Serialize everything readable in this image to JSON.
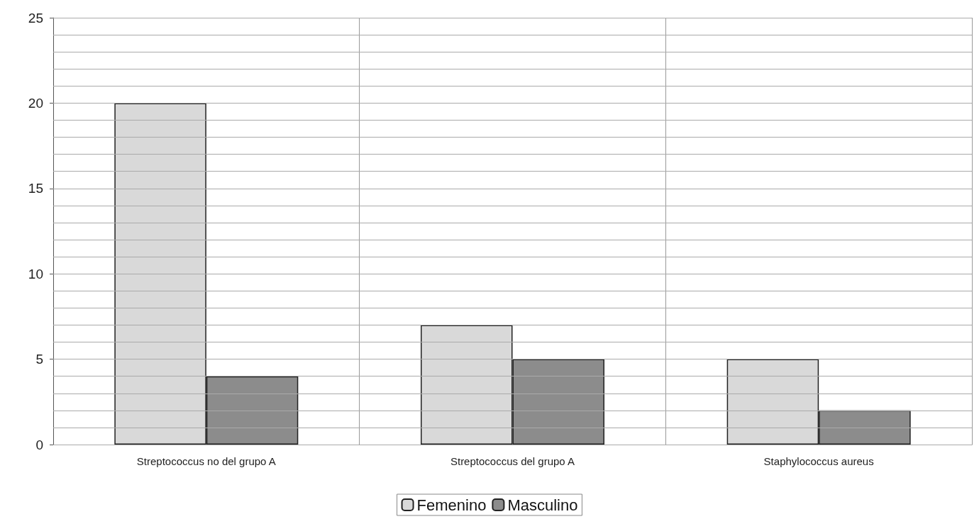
{
  "chart_data": {
    "type": "bar",
    "categories": [
      "Streptococcus no del grupo A",
      "Streptococcus del grupo A",
      "Staphylococcus aureus"
    ],
    "series": [
      {
        "name": "Femenino",
        "color": "#d9d9d9",
        "values": [
          20,
          7,
          5
        ]
      },
      {
        "name": "Masculino",
        "color": "#8c8c8c",
        "values": [
          4,
          5,
          2
        ]
      }
    ],
    "ylim": [
      0,
      25
    ],
    "yticks": [
      0,
      5,
      10,
      15,
      20,
      25
    ],
    "grid": true,
    "legend": "bottom"
  }
}
